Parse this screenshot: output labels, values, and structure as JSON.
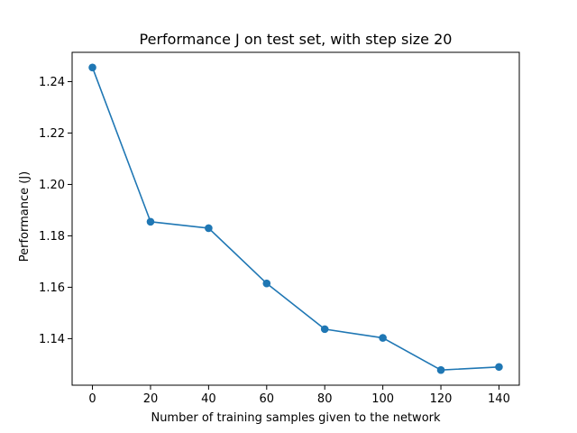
{
  "chart_data": {
    "type": "line",
    "title": "Performance J on test set, with step size 20",
    "xlabel": "Number of training samples given to the network",
    "ylabel": "Performance (J)",
    "x": [
      0,
      20,
      40,
      60,
      80,
      100,
      120,
      140
    ],
    "series": [
      {
        "values": [
          1.2455,
          1.1855,
          1.183,
          1.1615,
          1.1437,
          1.1403,
          1.1278,
          1.129
        ],
        "color": "#1f77b4"
      }
    ],
    "xlim": [
      -7,
      147
    ],
    "ylim": [
      1.1219,
      1.2514
    ],
    "xticks": [
      0,
      20,
      40,
      60,
      80,
      100,
      120,
      140
    ],
    "yticks": [
      1.14,
      1.16,
      1.18,
      1.2,
      1.22,
      1.24
    ],
    "ytick_labels": [
      "1.14",
      "1.16",
      "1.18",
      "1.20",
      "1.22",
      "1.24"
    ],
    "grid": false,
    "marker": "circle"
  }
}
